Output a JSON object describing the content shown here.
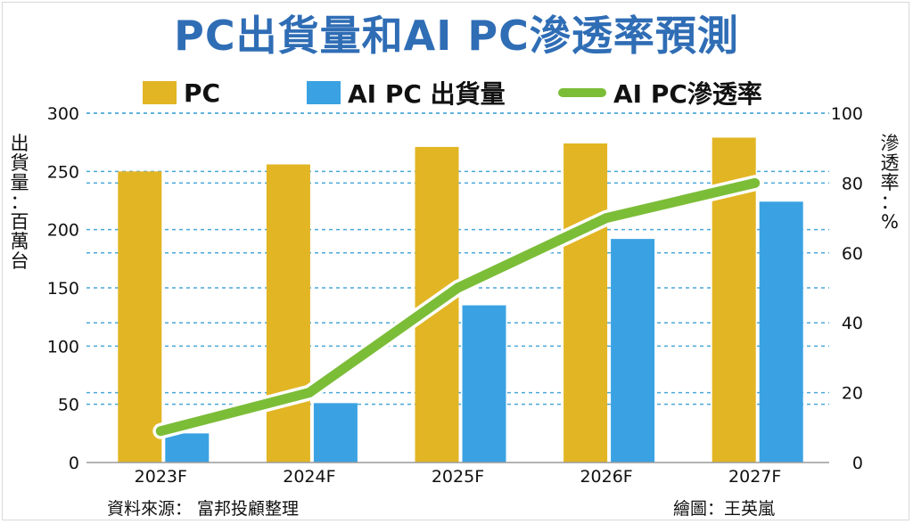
{
  "title": "PC出貨量和AI PC滲透率預測",
  "legend": {
    "pc": "PC",
    "ai_pc": "AI PC 出貨量",
    "penetration": "AI PC滲透率"
  },
  "left_axis_label": "出貨量：百萬台",
  "right_axis_label": "滲透率：%",
  "footer": {
    "source": "資料來源： 富邦投顧整理",
    "credit": "繪圖：王英嵐"
  },
  "colors": {
    "title": "#2f6db5",
    "pc": "#e2b524",
    "ai_pc": "#3aa2e2",
    "penetration": "#7cbd38",
    "grid": "#4aa7d8"
  },
  "chart_data": {
    "type": "bar",
    "categories": [
      "2023F",
      "2024F",
      "2025F",
      "2026F",
      "2027F"
    ],
    "series": [
      {
        "name": "PC",
        "type": "bar",
        "axis": "left",
        "values": [
          250,
          256,
          271,
          274,
          279
        ]
      },
      {
        "name": "AI PC 出貨量",
        "type": "bar",
        "axis": "left",
        "values": [
          25,
          51,
          135,
          192,
          224
        ]
      },
      {
        "name": "AI PC滲透率",
        "type": "line",
        "axis": "right",
        "values": [
          9,
          20,
          50,
          70,
          80
        ]
      }
    ],
    "ylim": [
      0,
      300
    ],
    "y_ticks": [
      0,
      50,
      100,
      150,
      200,
      250,
      300
    ],
    "y2lim": [
      0,
      100
    ],
    "y2_ticks": [
      0,
      20,
      40,
      60,
      80,
      100
    ],
    "ylabel": "出貨量：百萬台",
    "y2label": "滲透率：%",
    "grid": true,
    "legend_position": "top"
  }
}
